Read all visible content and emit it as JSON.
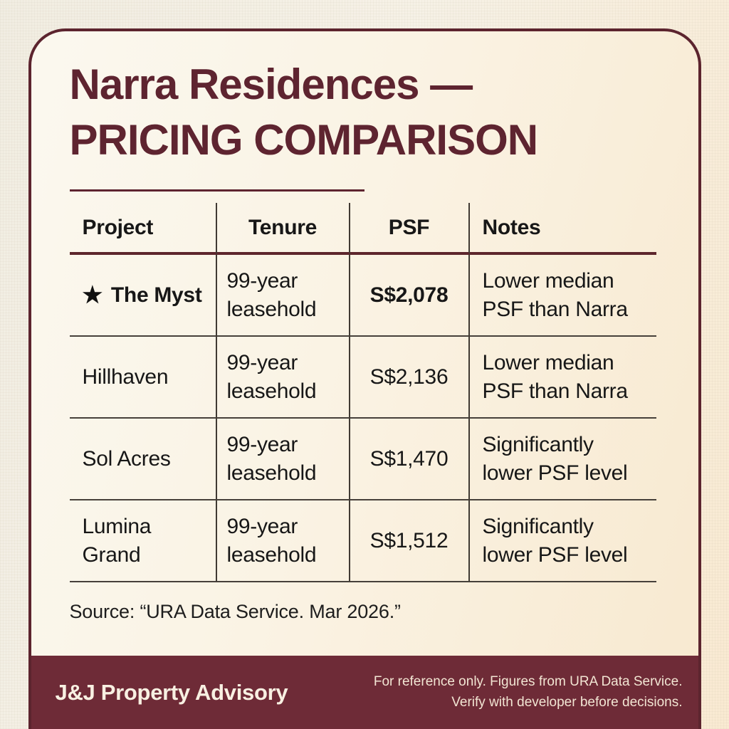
{
  "header": {
    "title_line1": "Narra Residences —",
    "title_line2": "PRICING COMPARISON"
  },
  "table": {
    "columns": [
      "Project",
      "Tenure",
      "PSF",
      "Notes"
    ],
    "rows": [
      {
        "star": "★",
        "project": "The Myst",
        "tenure": "99-year\nleasehold",
        "psf": "S$2,078",
        "notes": "Lower median\nPSF than Narra"
      },
      {
        "project": "Hillhaven",
        "tenure": "99-year\nleasehold",
        "psf": "S$2,136",
        "notes": "Lower median\nPSF than Narra"
      },
      {
        "project": "Sol Acres",
        "tenure": "99-year\nleasehold",
        "psf": "S$1,470",
        "notes": "Significantly\nlower PSF level"
      },
      {
        "project": "Lumina\nGrand",
        "tenure": "99-year\nleasehold",
        "psf": "S$1,512",
        "notes": "Significantly\nlower PSF level"
      }
    ]
  },
  "source": {
    "text": "Source: “URA Data Service. Mar 2026.”"
  },
  "footer": {
    "brand": "J&J Property Advisory",
    "disclaimer": "For reference only. Figures from URA Data Service.\nVerify with developer before decisions."
  },
  "colors": {
    "maroon_border": "#5c242e",
    "maroon_title": "#5e2430",
    "maroon_footer_band": "#6e2b37",
    "ink": "#171717",
    "cream_text": "#f8f0e2"
  }
}
